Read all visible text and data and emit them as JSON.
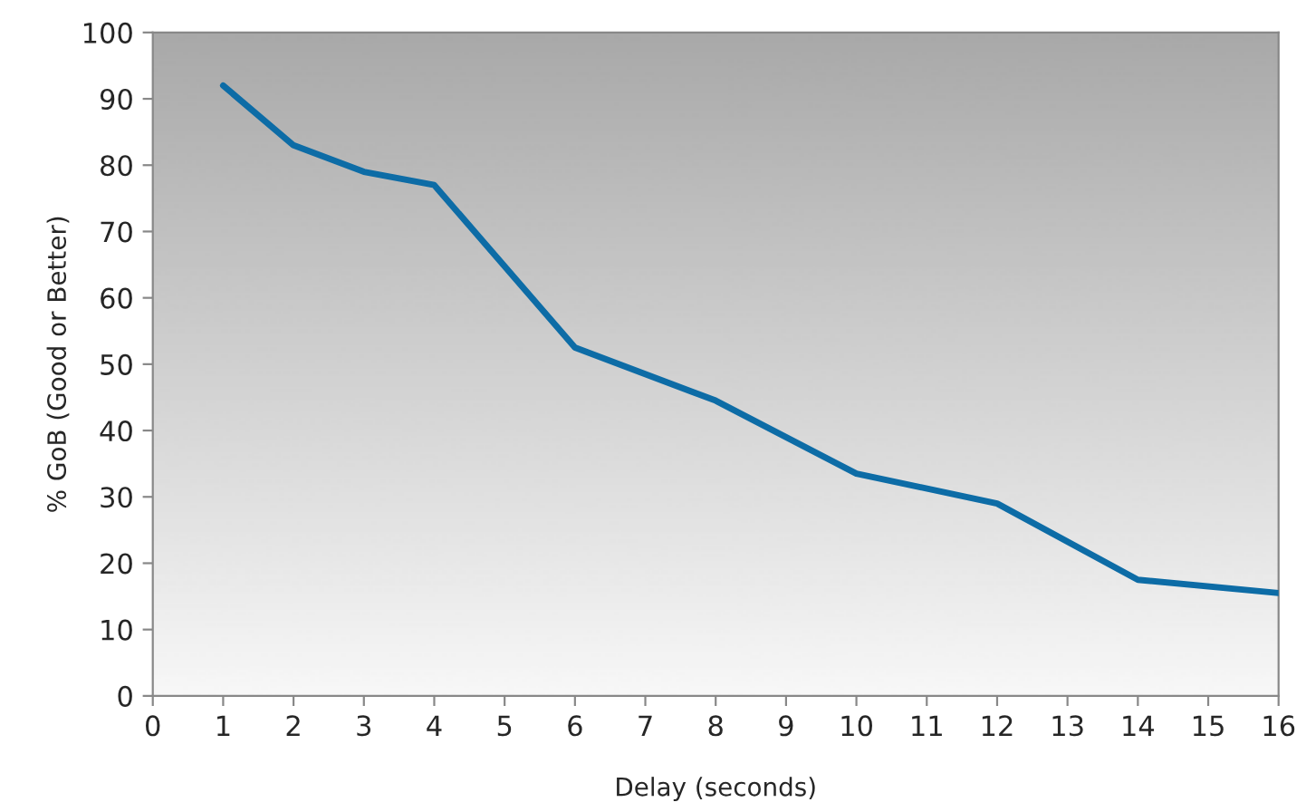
{
  "chart_data": {
    "type": "line",
    "xlabel": "Delay (seconds)",
    "ylabel": "% GoB (Good or Better)",
    "x": [
      1,
      2,
      3,
      4,
      6,
      8,
      10,
      12,
      14,
      16
    ],
    "series": [
      {
        "color": "#0d6ca6",
        "values": [
          92,
          83,
          79,
          77,
          52.5,
          44.5,
          33.5,
          29,
          17.5,
          15.5
        ]
      }
    ],
    "xlim": [
      0,
      16
    ],
    "xticks": [
      0,
      1,
      2,
      3,
      4,
      5,
      6,
      7,
      8,
      9,
      10,
      11,
      12,
      13,
      14,
      15,
      16
    ],
    "ylim": [
      0,
      100
    ],
    "yticks": [
      0,
      10,
      20,
      30,
      40,
      50,
      60,
      70,
      80,
      90,
      100
    ],
    "grid": false,
    "marker": "none",
    "line_style": "solid"
  }
}
